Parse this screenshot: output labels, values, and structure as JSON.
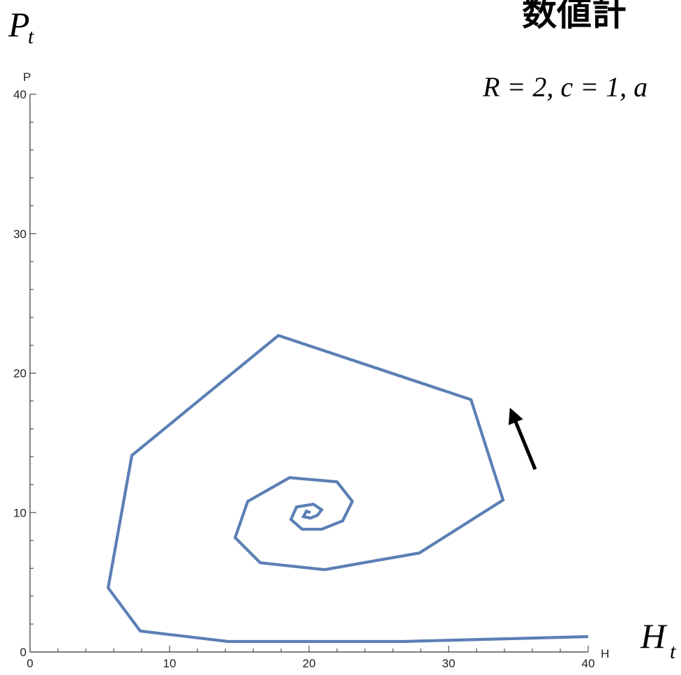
{
  "page": {
    "heading_text": "数値計",
    "params_text": "R = 2, c = 1, a",
    "y_math_label": "P",
    "y_math_sub": "t",
    "x_math_label": "H",
    "x_math_sub": "t"
  },
  "chart_data": {
    "type": "line",
    "xlabel": "H",
    "ylabel": "P",
    "xlim": [
      0,
      40
    ],
    "ylim": [
      0,
      40
    ],
    "xticks": [
      0,
      10,
      20,
      30,
      40
    ],
    "yticks": [
      0,
      10,
      20,
      30,
      40
    ],
    "grid": false,
    "line_color": "#5b7fb5",
    "arrow_color": "#000000",
    "series": [
      {
        "points": [
          [
            40.0,
            1.1
          ],
          [
            26.7,
            0.75
          ],
          [
            14.2,
            0.75
          ],
          [
            7.9,
            1.5
          ],
          [
            5.6,
            4.6
          ],
          [
            7.3,
            14.1
          ],
          [
            17.8,
            22.7
          ],
          [
            31.6,
            18.1
          ],
          [
            33.9,
            10.9
          ],
          [
            27.9,
            7.1
          ],
          [
            21.1,
            5.9
          ],
          [
            16.5,
            6.4
          ],
          [
            14.7,
            8.2
          ],
          [
            15.6,
            10.8
          ],
          [
            18.6,
            12.5
          ],
          [
            22.0,
            12.2
          ],
          [
            23.1,
            10.8
          ],
          [
            22.4,
            9.4
          ],
          [
            20.9,
            8.8
          ],
          [
            19.5,
            8.8
          ],
          [
            18.7,
            9.5
          ],
          [
            19.1,
            10.4
          ],
          [
            20.3,
            10.6
          ],
          [
            20.9,
            10.2
          ],
          [
            20.6,
            9.8
          ],
          [
            20.1,
            9.6
          ],
          [
            19.6,
            9.7
          ],
          [
            19.8,
            10.1
          ],
          [
            20.1,
            10.0
          ]
        ]
      }
    ],
    "annotations": [
      {
        "type": "arrow",
        "from": [
          36.2,
          13.1
        ],
        "to": [
          34.6,
          17.0
        ]
      }
    ]
  }
}
